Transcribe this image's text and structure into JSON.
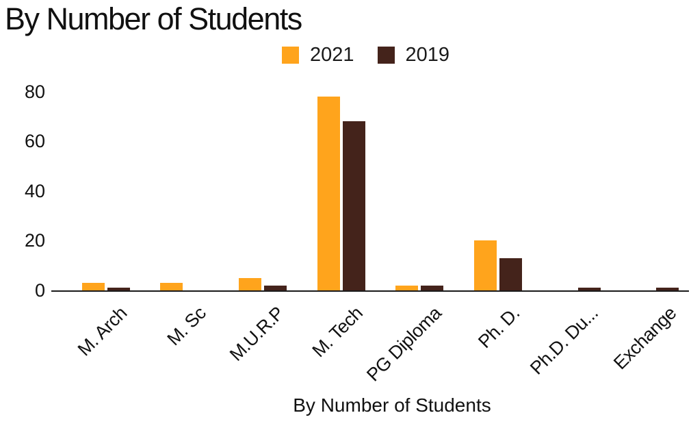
{
  "title": "By Number of Students",
  "chart_data": {
    "type": "bar",
    "title": "By Number of Students",
    "xlabel": "By Number of Students",
    "ylabel": "",
    "categories": [
      "M. Arch",
      "M. Sc",
      "M.U.R.P",
      "M. Tech",
      "PG Diploma",
      "Ph. D.",
      "Ph.D. Du...",
      "Exchange"
    ],
    "series": [
      {
        "name": "2021",
        "color": "#FFA41C",
        "values": [
          3,
          3,
          5,
          78,
          2,
          20,
          0,
          0
        ]
      },
      {
        "name": "2019",
        "color": "#44231B",
        "values": [
          1,
          0,
          2,
          68,
          2,
          13,
          1,
          1
        ]
      }
    ],
    "ylim": [
      0,
      80
    ],
    "yticks": [
      0,
      20,
      40,
      60,
      80
    ],
    "grid": false,
    "legend_position": "top-center",
    "axis_color": "#1a1a1a",
    "text_color": "#111111",
    "background": "#ffffff"
  }
}
